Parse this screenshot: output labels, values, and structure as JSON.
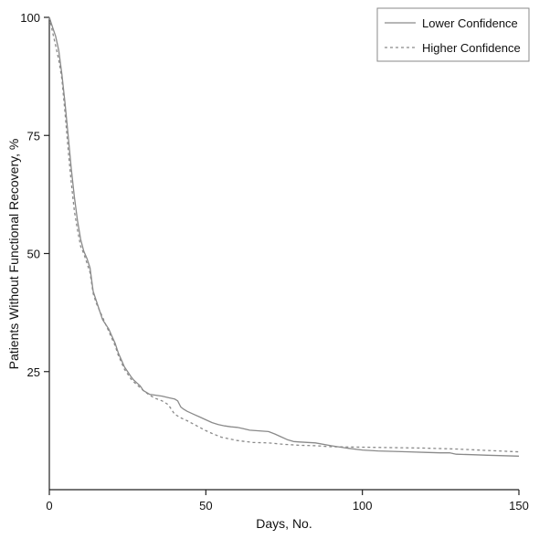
{
  "chart_data": {
    "type": "line",
    "title": "",
    "xlabel": "Days, No.",
    "ylabel": "Patients Without Functional Recovery, %",
    "xlim": [
      0,
      150
    ],
    "ylim": [
      0,
      100
    ],
    "x_ticks": [
      0,
      50,
      100,
      150
    ],
    "y_ticks": [
      25,
      50,
      75,
      100
    ],
    "x_tick_labels": [
      "0",
      "50",
      "100",
      "150"
    ],
    "y_tick_labels": [
      "25",
      "50",
      "75",
      "100"
    ],
    "grid": false,
    "legend_position": "top-right",
    "series": [
      {
        "name": "Lower Confidence",
        "style": "solid",
        "color": "#8a8a8a",
        "x": [
          0,
          1,
          2,
          3,
          4,
          5,
          6,
          7,
          8,
          9,
          10,
          11,
          12,
          13,
          14,
          15,
          16,
          17,
          18,
          19,
          20,
          21,
          22,
          23,
          24,
          25,
          26,
          27,
          28,
          29,
          30,
          32,
          34,
          36,
          38,
          40,
          41,
          42,
          43,
          44,
          46,
          48,
          50,
          52,
          54,
          56,
          58,
          60,
          62,
          64,
          66,
          68,
          70,
          72,
          74,
          76,
          78,
          80,
          85,
          90,
          95,
          100,
          105,
          110,
          115,
          120,
          125,
          128,
          130,
          135,
          140,
          145,
          150
        ],
        "y": [
          100,
          98,
          96,
          93,
          88,
          82,
          75,
          68,
          62,
          57,
          53,
          50.5,
          49,
          47,
          42,
          40,
          38,
          36,
          35,
          34,
          32.5,
          31,
          29,
          27.5,
          26,
          25,
          24,
          23.2,
          22.6,
          22,
          21,
          20.2,
          20,
          19.8,
          19.5,
          19.2,
          18.8,
          17.5,
          17,
          16.6,
          16,
          15.4,
          14.8,
          14.2,
          13.8,
          13.5,
          13.3,
          13.2,
          12.9,
          12.6,
          12.5,
          12.4,
          12.3,
          11.8,
          11.2,
          10.6,
          10.2,
          10.1,
          9.9,
          9.3,
          8.8,
          8.4,
          8.2,
          8.1,
          8.0,
          7.9,
          7.8,
          7.8,
          7.5,
          7.4,
          7.3,
          7.2,
          7.1
        ]
      },
      {
        "name": "Higher Confidence",
        "style": "dashed",
        "color": "#8a8a8a",
        "x": [
          0,
          1,
          2,
          3,
          4,
          5,
          6,
          7,
          8,
          9,
          10,
          11,
          12,
          13,
          14,
          15,
          16,
          17,
          18,
          19,
          20,
          21,
          22,
          23,
          24,
          25,
          26,
          27,
          28,
          29,
          30,
          32,
          34,
          36,
          38,
          40,
          42,
          44,
          46,
          48,
          50,
          52,
          55,
          60,
          65,
          70,
          75,
          80,
          85,
          90,
          100,
          110,
          120,
          130,
          140,
          150
        ],
        "y": [
          100,
          97,
          94,
          91,
          87,
          80,
          72,
          65,
          59,
          55,
          51.5,
          50,
          48,
          46,
          41.5,
          39.5,
          38,
          36.5,
          35,
          33.5,
          32,
          30.5,
          28.5,
          27,
          25.5,
          24.5,
          23.5,
          22.8,
          22.2,
          21.6,
          21,
          20,
          19.3,
          18.8,
          18,
          16,
          15.2,
          14.6,
          13.9,
          13.2,
          12.5,
          11.9,
          11.1,
          10.4,
          10.0,
          9.9,
          9.6,
          9.4,
          9.3,
          9.1,
          9.0,
          8.9,
          8.8,
          8.6,
          8.3,
          8.0
        ]
      }
    ]
  }
}
